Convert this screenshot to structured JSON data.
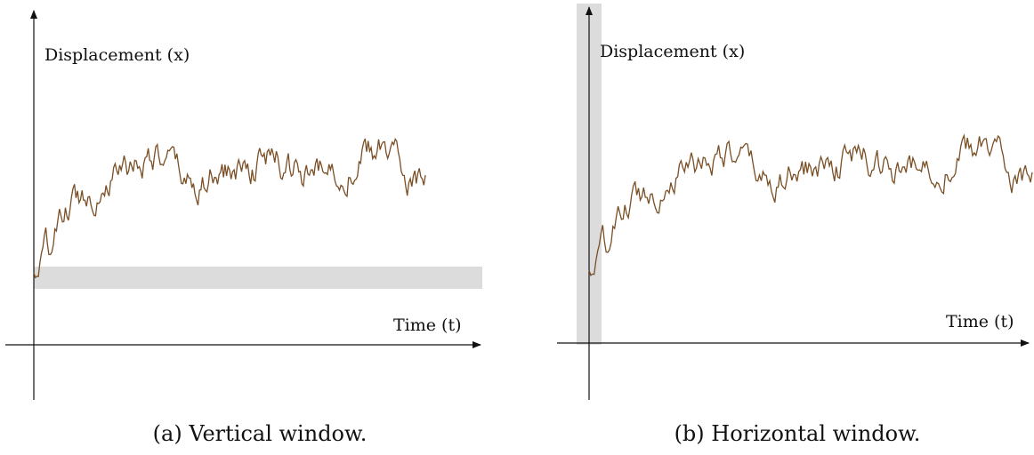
{
  "colors": {
    "trace": "#7a4f26",
    "window_band": "#dcdcdc",
    "axis": "#111111"
  },
  "panels": [
    {
      "id": "a",
      "caption": "(a) Vertical window.",
      "y_axis_label": "Displacement (x)",
      "x_axis_label": "Time (t)",
      "window": "horizontal band spanning all time, narrow displacement range near the start value"
    },
    {
      "id": "b",
      "caption": "(b) Horizontal window.",
      "y_axis_label": "Displacement (x)",
      "x_axis_label": "Time (t)",
      "window": "vertical band spanning all displacement, narrow time range at the start"
    }
  ],
  "chart_data": [
    {
      "type": "line",
      "title": "",
      "xlabel": "Time (t)",
      "ylabel": "Displacement (x)",
      "x": [
        0,
        0.1,
        0.2,
        0.3,
        0.4,
        0.5,
        0.6,
        0.7,
        0.8,
        0.9,
        1.0
      ],
      "series": [
        {
          "values": [
            0.25,
            0.52,
            0.62,
            0.7,
            0.58,
            0.63,
            0.68,
            0.61,
            0.66,
            0.72,
            0.57
          ]
        }
      ],
      "band": {
        "axis": "y",
        "range": [
          0.18,
          0.29
        ]
      },
      "grid": false
    },
    {
      "type": "line",
      "title": "",
      "xlabel": "Time (t)",
      "ylabel": "Displacement (x)",
      "x": [
        0,
        0.1,
        0.2,
        0.3,
        0.4,
        0.5,
        0.6,
        0.7,
        0.8,
        0.9,
        1.0
      ],
      "series": [
        {
          "values": [
            0.25,
            0.52,
            0.62,
            0.7,
            0.58,
            0.63,
            0.68,
            0.61,
            0.66,
            0.72,
            0.57
          ]
        }
      ],
      "band": {
        "axis": "x",
        "range": [
          -0.03,
          0.03
        ]
      },
      "grid": false
    }
  ]
}
